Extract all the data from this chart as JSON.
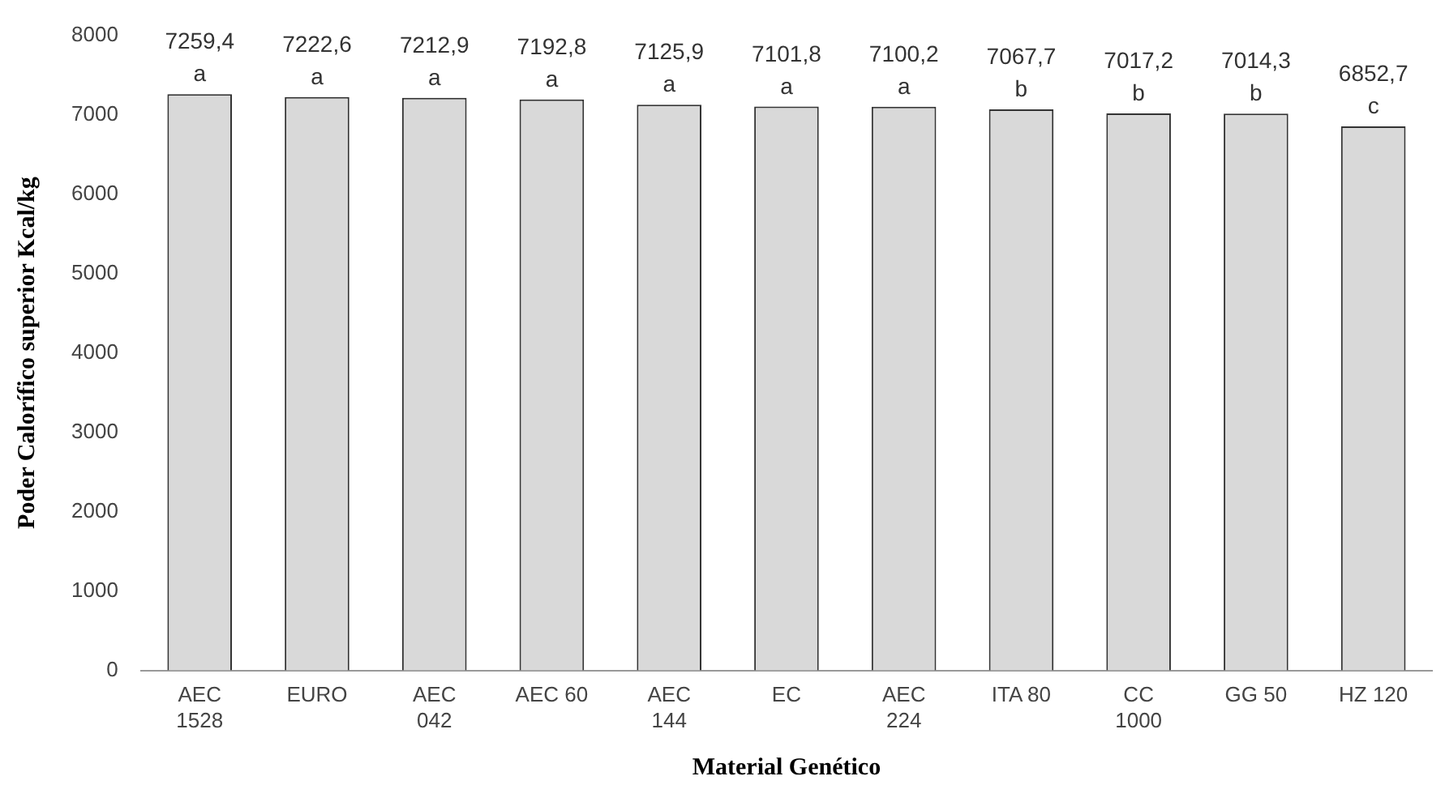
{
  "chart_data": {
    "type": "bar",
    "xlabel": "Material Genético",
    "ylabel": "Poder Calorífico superior Kcal/kg",
    "categories": [
      "AEC 1528",
      "EURO",
      "AEC 042",
      "AEC 60",
      "AEC 144",
      "EC",
      "AEC 224",
      "ITA 80",
      "CC 1000",
      "GG 50",
      "HZ 120"
    ],
    "values": [
      7259.4,
      7222.6,
      7212.9,
      7192.8,
      7125.9,
      7101.8,
      7100.2,
      7067.7,
      7017.2,
      7014.3,
      6852.7
    ],
    "value_labels": [
      "7259,4",
      "7222,6",
      "7212,9",
      "7192,8",
      "7125,9",
      "7101,8",
      "7100,2",
      "7067,7",
      "7017,2",
      "7014,3",
      "6852,7"
    ],
    "color": "#d9d9d9",
    "ylim": [
      0,
      8000
    ],
    "yticks": [
      0,
      1000,
      2000,
      3000,
      4000,
      5000,
      6000,
      7000,
      8000
    ],
    "grid": false,
    "legend": false,
    "annotations": [
      {
        "text": "a",
        "x": "AEC 1528",
        "y": 7259.4
      },
      {
        "text": "a",
        "x": "EURO",
        "y": 7222.6
      },
      {
        "text": "a",
        "x": "AEC 042",
        "y": 7212.9
      },
      {
        "text": "a",
        "x": "AEC 60",
        "y": 7192.8
      },
      {
        "text": "a",
        "x": "AEC 144",
        "y": 7125.9
      },
      {
        "text": "a",
        "x": "EC",
        "y": 7101.8
      },
      {
        "text": "a",
        "x": "AEC 224",
        "y": 7100.2
      },
      {
        "text": "b",
        "x": "ITA 80",
        "y": 7067.7
      },
      {
        "text": "b",
        "x": "CC 1000",
        "y": 7017.2
      },
      {
        "text": "b",
        "x": "GG 50",
        "y": 7014.3
      },
      {
        "text": "c",
        "x": "HZ 120",
        "y": 6852.7
      }
    ]
  }
}
